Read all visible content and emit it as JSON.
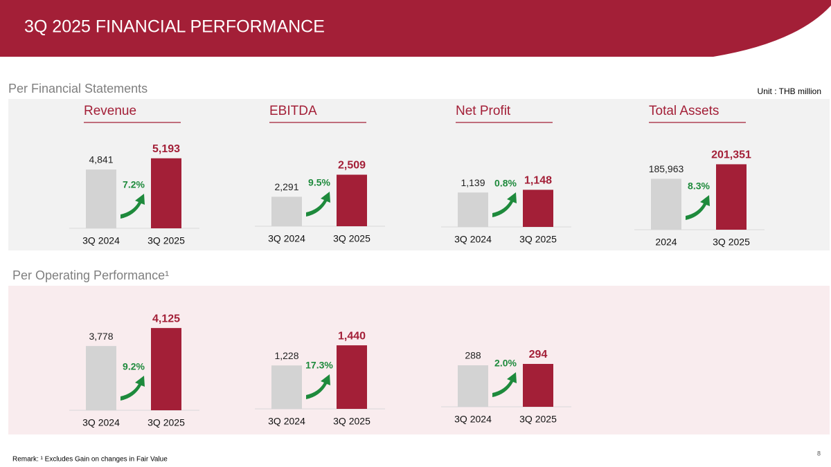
{
  "header": {
    "title": "3Q 2025 FINANCIAL PERFORMANCE"
  },
  "sections": [
    "Per Financial Statements",
    "Per Operating Performance¹"
  ],
  "unit": "Unit : THB million",
  "remark": "Remark: ¹ Excludes Gain on changes in Fair Value",
  "page_number": "8",
  "chart_data": [
    {
      "type": "bar",
      "title": "Revenue",
      "categories": [
        "3Q 2024",
        "3Q 2025"
      ],
      "values": [
        4841,
        5193
      ],
      "value_labels": [
        "4,841",
        "5,193"
      ],
      "colors": [
        "#d3d3d3",
        "#a31f37"
      ],
      "annotation": "7.2%",
      "ylim": [
        3000,
        5600
      ]
    },
    {
      "type": "bar",
      "title": "EBITDA",
      "categories": [
        "3Q 2024",
        "3Q 2025"
      ],
      "values": [
        2291,
        2509
      ],
      "value_labels": [
        "2,291",
        "2,509"
      ],
      "colors": [
        "#d3d3d3",
        "#a31f37"
      ],
      "annotation": "9.5%",
      "ylim": [
        2000,
        2820
      ]
    },
    {
      "type": "bar",
      "title": "Net Profit",
      "categories": [
        "3Q 2024",
        "3Q 2025"
      ],
      "values": [
        1139,
        1148
      ],
      "value_labels": [
        "1,139",
        "1,148"
      ],
      "colors": [
        "#d3d3d3",
        "#a31f37"
      ],
      "annotation": "0.8%",
      "ylim": [
        1025,
        1300
      ]
    },
    {
      "type": "bar",
      "title": "Total Assets",
      "categories": [
        "2024",
        "3Q 2025"
      ],
      "values": [
        185963,
        201351
      ],
      "value_labels": [
        "185,963",
        "201,351"
      ],
      "colors": [
        "#d3d3d3",
        "#a31f37"
      ],
      "annotation": "8.3%",
      "ylim": [
        132000,
        220000
      ]
    },
    {
      "type": "bar",
      "categories": [
        "3Q 2024",
        "3Q 2025"
      ],
      "values": [
        3778,
        4125
      ],
      "value_labels": [
        "3,778",
        "4,125"
      ],
      "colors": [
        "#d3d3d3",
        "#a31f37"
      ],
      "annotation": "9.2%",
      "ylim": [
        2540,
        4140
      ]
    },
    {
      "type": "bar",
      "categories": [
        "3Q 2024",
        "3Q 2025"
      ],
      "values": [
        1228,
        1440
      ],
      "value_labels": [
        "1,228",
        "1,440"
      ],
      "colors": [
        "#d3d3d3",
        "#a31f37"
      ],
      "annotation": "17.3%",
      "ylim": [
        770,
        1645
      ]
    },
    {
      "type": "bar",
      "categories": [
        "3Q 2024",
        "3Q 2025"
      ],
      "values": [
        288,
        294
      ],
      "value_labels": [
        "288",
        "294"
      ],
      "colors": [
        "#d3d3d3",
        "#a31f37"
      ],
      "annotation": "2.0%",
      "ylim": [
        108,
        468
      ]
    }
  ]
}
